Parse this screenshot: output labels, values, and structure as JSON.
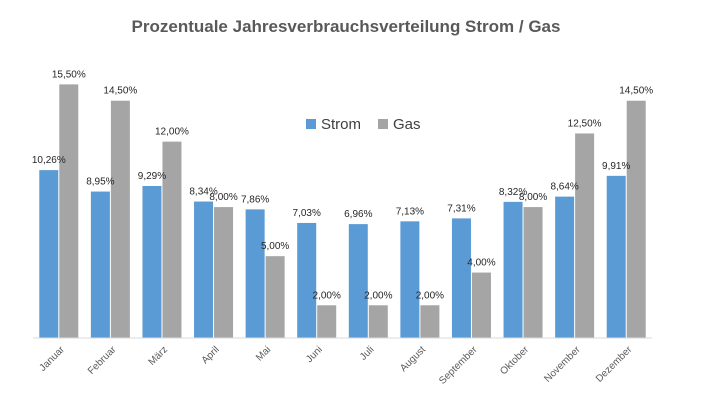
{
  "chart_data": {
    "type": "bar",
    "title": "Prozentuale Jahresverbrauchsverteilung Strom / Gas",
    "xlabel": "",
    "ylabel": "",
    "ylim": [
      0,
      16.5
    ],
    "grid": false,
    "legend_position": "top-center",
    "categories": [
      "Januar",
      "Februar",
      "März",
      "April",
      "Mai",
      "Juni",
      "Juli",
      "August",
      "September",
      "Oktober",
      "November",
      "Dezember"
    ],
    "series": [
      {
        "name": "Strom",
        "color": "#5B9BD5",
        "values": [
          10.26,
          8.95,
          9.29,
          8.34,
          7.86,
          7.03,
          6.96,
          7.13,
          7.31,
          8.32,
          8.64,
          9.91
        ],
        "labels": [
          "10,26%",
          "8,95%",
          "9,29%",
          "8,34%",
          "7,86%",
          "7,03%",
          "6,96%",
          "7,13%",
          "7,31%",
          "8,32%",
          "8,64%",
          "9,91%"
        ]
      },
      {
        "name": "Gas",
        "color": "#A5A5A5",
        "values": [
          15.5,
          14.5,
          12.0,
          8.0,
          5.0,
          2.0,
          2.0,
          2.0,
          4.0,
          8.0,
          12.5,
          14.5
        ],
        "labels": [
          "15,50%",
          "14,50%",
          "12,00%",
          "8,00%",
          "5,00%",
          "2,00%",
          "2,00%",
          "2,00%",
          "4,00%",
          "8,00%",
          "12,50%",
          "14,50%"
        ]
      }
    ]
  }
}
